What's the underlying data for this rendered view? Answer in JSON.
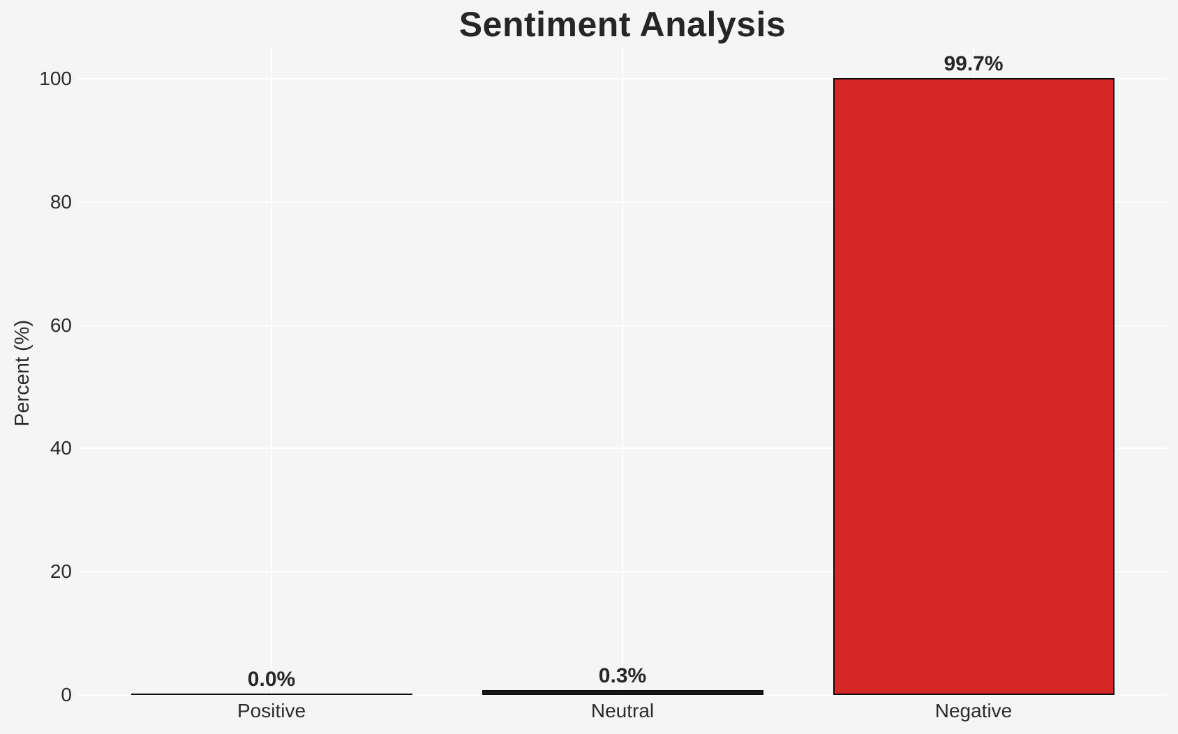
{
  "chart_data": {
    "type": "bar",
    "title": "Sentiment Analysis",
    "ylabel": "Percent (%)",
    "xlabel": "",
    "categories": [
      "Positive",
      "Neutral",
      "Negative"
    ],
    "values": [
      0.0,
      0.3,
      99.7
    ],
    "value_labels": [
      "0.0%",
      "0.3%",
      "99.7%"
    ],
    "yticks": [
      0,
      20,
      40,
      60,
      80,
      100
    ],
    "ylim": [
      0,
      105
    ],
    "grid": "horizontal and vertical white gridlines",
    "legend_position": "none",
    "colors": {
      "negative_bar_fill": "#d62728",
      "bar_edge": "#0d0d0d",
      "background": "#f5f5f6",
      "gridline": "#ffffff",
      "text": "#262626"
    }
  }
}
